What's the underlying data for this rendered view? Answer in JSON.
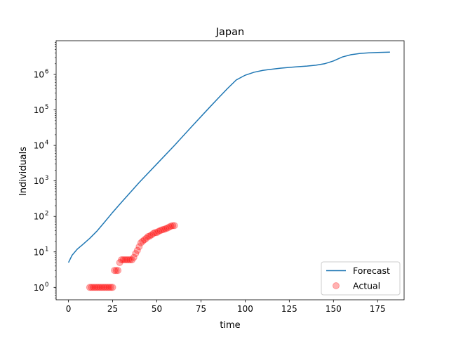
{
  "chart_data": {
    "type": "line",
    "title": "Japan",
    "xlabel": "time",
    "ylabel": "Individuals",
    "xlim": [
      -7,
      190
    ],
    "ylim_log10": [
      -0.35,
      6.95
    ],
    "yscale": "log",
    "grid": false,
    "legend_position": "lower-right",
    "x_ticks": [
      0,
      25,
      50,
      75,
      100,
      125,
      150,
      175
    ],
    "x_tick_labels": [
      "0",
      "25",
      "50",
      "75",
      "100",
      "125",
      "150",
      "175"
    ],
    "y_ticks": [
      1,
      10,
      100,
      1000,
      10000,
      100000,
      1000000
    ],
    "y_tick_exponents": [
      "0",
      "1",
      "2",
      "3",
      "4",
      "5",
      "6"
    ],
    "y_tick_base": "10",
    "series": [
      {
        "name": "Forecast",
        "kind": "line",
        "color": "#1f77b4",
        "x": [
          0,
          2,
          5,
          8,
          12,
          16,
          20,
          25,
          30,
          40,
          50,
          60,
          70,
          80,
          85,
          90,
          95,
          100,
          105,
          110,
          115,
          120,
          125,
          130,
          135,
          140,
          145,
          150,
          155,
          160,
          165,
          170,
          175,
          182
        ],
        "y": [
          5,
          8,
          12,
          16,
          24,
          38,
          65,
          130,
          250,
          900,
          3000,
          10000,
          35000,
          120000,
          220000,
          400000,
          700000,
          950000,
          1150000,
          1300000,
          1400000,
          1500000,
          1580000,
          1650000,
          1720000,
          1820000,
          2000000,
          2400000,
          3100000,
          3600000,
          3900000,
          4050000,
          4150000,
          4250000
        ]
      },
      {
        "name": "Actual",
        "kind": "scatter",
        "color": "#ff0000",
        "x": [
          12,
          13,
          14,
          15,
          16,
          17,
          18,
          19,
          20,
          21,
          22,
          23,
          24,
          25,
          26,
          27,
          28,
          29,
          30,
          31,
          32,
          33,
          34,
          35,
          36,
          37,
          38,
          39,
          40,
          41,
          42,
          43,
          44,
          45,
          46,
          47,
          48,
          49,
          50,
          51,
          52,
          53,
          54,
          55,
          56,
          57,
          58,
          59,
          60
        ],
        "y": [
          1,
          1,
          1,
          1,
          1,
          1,
          1,
          1,
          1,
          1,
          1,
          1,
          1,
          1,
          3,
          3,
          3,
          5,
          6,
          6,
          6,
          6,
          6,
          6,
          6,
          7,
          9,
          11,
          14,
          18,
          20,
          22,
          24,
          27,
          28,
          30,
          33,
          35,
          35,
          38,
          40,
          42,
          43,
          45,
          47,
          50,
          53,
          55,
          55
        ]
      }
    ]
  }
}
